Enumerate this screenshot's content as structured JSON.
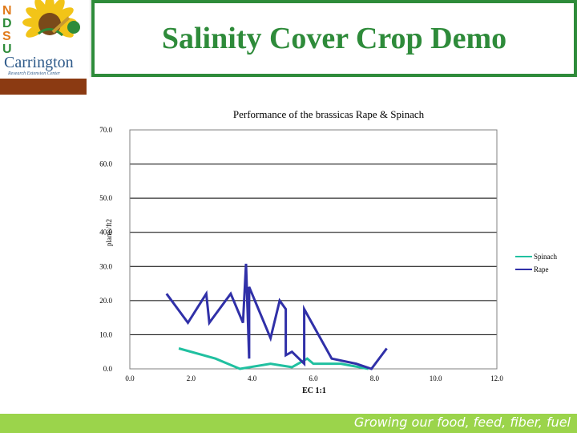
{
  "slide": {
    "title": "Salinity Cover Crop Demo",
    "footer": "Growing our food, feed, fiber, fuel"
  },
  "logo": {
    "letters": [
      "N",
      "D",
      "S",
      "U"
    ],
    "name": "Carrington",
    "subtitle": "Research Extension Center"
  },
  "colors": {
    "title_green": "#2e8b3a",
    "brown_bar": "#8b3a12",
    "footer_green": "#9bd44b",
    "spinach": "#20c0a0",
    "rape": "#3030a8"
  },
  "chart_data": {
    "type": "line",
    "title": "Performance of the brassicas Rape & Spinach",
    "xlabel": "EC 1:1",
    "ylabel": "plants/ft2",
    "xlim": [
      0,
      12
    ],
    "ylim": [
      0,
      70
    ],
    "xticks": [
      "0.0",
      "2.0",
      "4.0",
      "6.0",
      "8.0",
      "10.0",
      "12.0"
    ],
    "yticks": [
      "0.0",
      "10.0",
      "20.0",
      "30.0",
      "40.0",
      "50.0",
      "60.0",
      "70.0"
    ],
    "legend_position": "right",
    "series": [
      {
        "name": "Spinach",
        "color": "#20c0a0",
        "points": [
          [
            1.6,
            6.0
          ],
          [
            2.8,
            3.0
          ],
          [
            3.6,
            0.0
          ],
          [
            4.6,
            1.5
          ],
          [
            5.3,
            0.5
          ],
          [
            5.8,
            3.0
          ],
          [
            6.0,
            1.5
          ],
          [
            6.9,
            1.5
          ],
          [
            7.8,
            0.0
          ]
        ]
      },
      {
        "name": "Rape",
        "color": "#3030a8",
        "points": [
          [
            1.2,
            22.0
          ],
          [
            1.9,
            13.5
          ],
          [
            2.5,
            22.0
          ],
          [
            2.6,
            13.5
          ],
          [
            3.3,
            22.0
          ],
          [
            3.7,
            13.5
          ],
          [
            3.8,
            30.8
          ],
          [
            3.9,
            3.0
          ],
          [
            3.9,
            24.0
          ],
          [
            4.6,
            9.0
          ],
          [
            4.9,
            20.0
          ],
          [
            5.1,
            17.5
          ],
          [
            5.1,
            4.0
          ],
          [
            5.3,
            5.0
          ],
          [
            5.7,
            1.5
          ],
          [
            5.7,
            17.5
          ],
          [
            6.6,
            3.0
          ],
          [
            7.4,
            1.5
          ],
          [
            7.9,
            0.0
          ],
          [
            8.4,
            6.0
          ]
        ]
      }
    ]
  }
}
